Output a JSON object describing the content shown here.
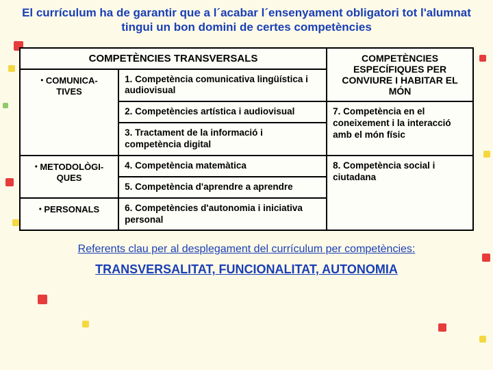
{
  "bg": {
    "base": "#fdfae8",
    "dots": [
      {
        "t": 60,
        "l": 20,
        "w": 14,
        "h": 14,
        "c": "#e73c3c"
      },
      {
        "t": 95,
        "l": 12,
        "w": 10,
        "h": 10,
        "c": "#f5d742"
      },
      {
        "t": 260,
        "l": 8,
        "w": 12,
        "h": 12,
        "c": "#e73c3c"
      },
      {
        "t": 320,
        "l": 18,
        "w": 10,
        "h": 10,
        "c": "#f5d742"
      },
      {
        "t": 430,
        "l": 55,
        "w": 14,
        "h": 14,
        "c": "#e73c3c"
      },
      {
        "t": 468,
        "l": 120,
        "w": 10,
        "h": 10,
        "c": "#f5d742"
      },
      {
        "t": 472,
        "l": 640,
        "w": 12,
        "h": 12,
        "c": "#e73c3c"
      },
      {
        "t": 490,
        "l": 700,
        "w": 10,
        "h": 10,
        "c": "#f5d742"
      },
      {
        "t": 80,
        "l": 700,
        "w": 10,
        "h": 10,
        "c": "#e73c3c"
      },
      {
        "t": 220,
        "l": 706,
        "w": 10,
        "h": 10,
        "c": "#f5d742"
      },
      {
        "t": 370,
        "l": 704,
        "w": 12,
        "h": 12,
        "c": "#e73c3c"
      },
      {
        "t": 150,
        "l": 4,
        "w": 8,
        "h": 8,
        "c": "#8fc96b"
      }
    ]
  },
  "title": "El currículum ha de garantir que a l´acabar l´ensenyament obligatori tot l'alumnat tingui un bon domini de certes competències",
  "headers": {
    "transversals": "COMPETÈNCIES TRANSVERSALS",
    "especifiques": "COMPETÈNCIES ESPECÍFIQUES PER CONVIURE I HABITAR EL MÓN"
  },
  "categories": {
    "comunicatives_a": "COMUNICA-",
    "comunicatives_b": "TIVES",
    "metodologiques_a": "METODOLÒGI-",
    "metodologiques_b": "QUES",
    "personals": "PERSONALS"
  },
  "items": {
    "c1": "1. Competència comunicativa lingüística i audiovisual",
    "c2": "2. Competències artística i audiovisual",
    "c3": "3. Tractament de la informació i competència digital",
    "c4": "4. Competència matemàtica",
    "c5": "5. Competència d'aprendre a aprendre",
    "c6": "6. Competències d'autonomia i iniciativa personal"
  },
  "spec": {
    "c7": "7. Competència en el coneixement i la interacció amb el món físic",
    "c8": "8. Competència social i ciutadana"
  },
  "footer1": "Referents clau per al desplegament del currículum per competències:",
  "footer2": "TRANSVERSALITAT, FUNCIONALITAT,  AUTONOMIA"
}
